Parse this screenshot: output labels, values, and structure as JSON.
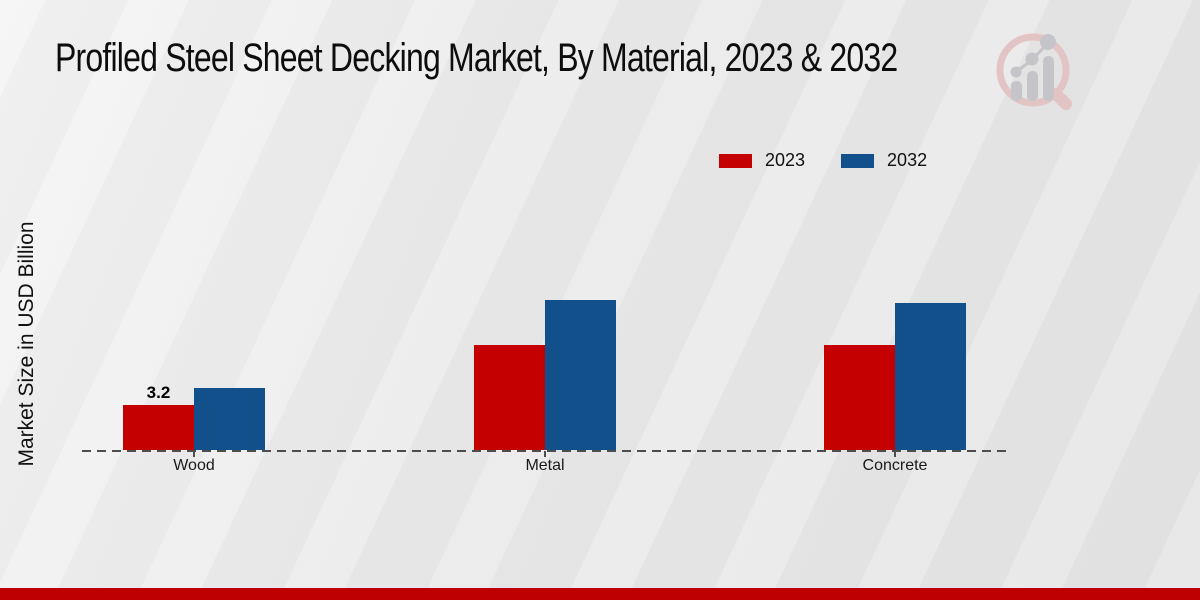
{
  "page": {
    "title": "Profiled Steel Sheet Decking Market, By Material, 2023 & 2032",
    "ylabel": "Market Size in USD Billion",
    "footer_stripe_color": "#bf0000",
    "background_color": "#eaeaea"
  },
  "legend": {
    "items": [
      {
        "label": "2023",
        "color": "#c40000"
      },
      {
        "label": "2032",
        "color": "#12508b"
      }
    ]
  },
  "logo": {
    "name": "market-research-future-watermark",
    "ring_color": "#e3c4c4",
    "bars_color": "#c5c5c9"
  },
  "chart_data": {
    "type": "bar",
    "title": "Profiled Steel Sheet Decking Market, By Material, 2023 & 2032",
    "xlabel": "",
    "ylabel": "Market Size in USD Billion",
    "categories": [
      "Wood",
      "Metal",
      "Concrete"
    ],
    "series": [
      {
        "name": "2023",
        "color": "#c40000",
        "values": [
          3.2,
          7.5,
          7.5
        ],
        "value_labels": [
          "3.2",
          "",
          ""
        ]
      },
      {
        "name": "2032",
        "color": "#12508b",
        "values": [
          4.4,
          10.7,
          10.5
        ],
        "value_labels": [
          "",
          "",
          ""
        ]
      }
    ],
    "ylim": [
      0,
      12
    ],
    "grid": false,
    "y_axis_ticks_visible": false,
    "baseline_style": "dashed",
    "legend_position": "top-right"
  }
}
